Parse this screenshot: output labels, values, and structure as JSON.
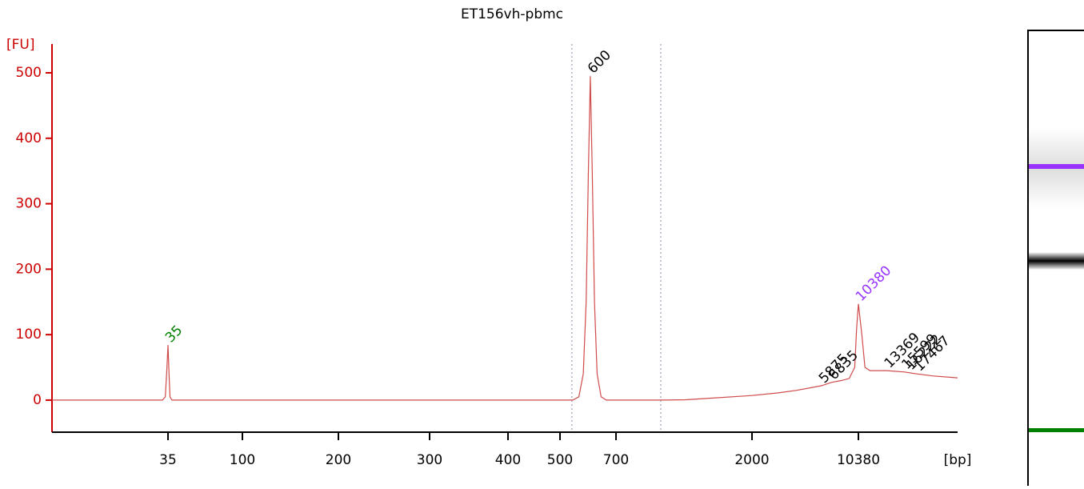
{
  "chart_data": {
    "type": "line",
    "title": "ET156vh-pbmc",
    "y_label": "[FU]",
    "x_label": "[bp]",
    "x": [
      10,
      30,
      33,
      34,
      34.5,
      35,
      35.5,
      36,
      37,
      40,
      540,
      560,
      575,
      585,
      593,
      600,
      607,
      615,
      625,
      640,
      660,
      1000,
      1200,
      2000,
      3000,
      4000,
      5000,
      5875,
      6835,
      8000,
      9000,
      9800,
      10100,
      10380,
      10700,
      11000,
      11500,
      13369,
      15599,
      17467,
      20000,
      25000
    ],
    "values": [
      0,
      0,
      0,
      5,
      40,
      84,
      40,
      5,
      0,
      0,
      0,
      5,
      40,
      150,
      350,
      495,
      350,
      150,
      40,
      5,
      0,
      0,
      0.5,
      7,
      11,
      15,
      19,
      22,
      27,
      30,
      33,
      50,
      110,
      147,
      100,
      50,
      45,
      45,
      43,
      40,
      37,
      34
    ],
    "color": "#d04a4a",
    "xlim": [
      10,
      25000
    ],
    "xticks": [
      35,
      100,
      200,
      300,
      400,
      500,
      700,
      2000,
      10380
    ],
    "ylim": [
      -49,
      544
    ],
    "yticks": [
      0,
      100,
      200,
      300,
      400,
      500
    ],
    "region": [
      537,
      989
    ],
    "peaks": [
      35,
      600,
      5875,
      6835,
      10380,
      13369,
      15599,
      16222,
      17467
    ],
    "peak_colors": [
      "#008000",
      "#000000",
      "#000000",
      "#000000",
      "#9933ff",
      "#000000",
      "#000000",
      "#000000",
      "#000000"
    ]
  }
}
